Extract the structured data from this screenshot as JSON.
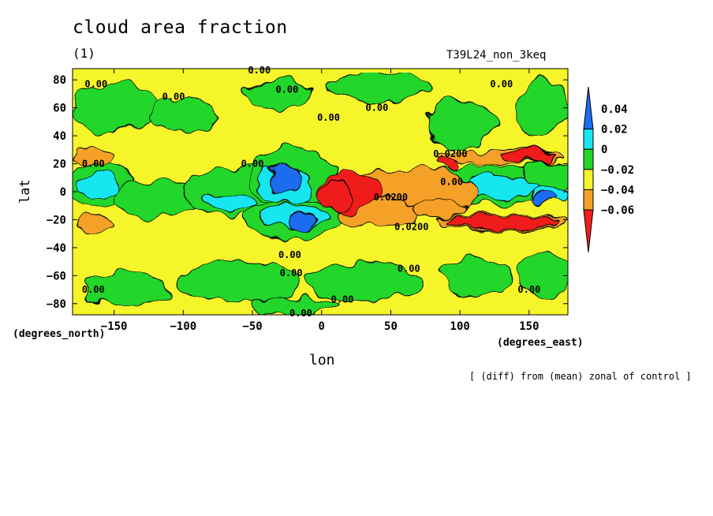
{
  "chart_data": {
    "type": "heatmap",
    "title": "cloud area fraction",
    "subtitle": "(1)",
    "run_label": "T39L24_non_3keq",
    "xlabel": "lon",
    "ylabel": "lat",
    "x_units": "(degrees_east)",
    "y_units": "(degrees_north)",
    "caption": "[ (diff) from (mean) zonal of control ]",
    "xlim": [
      -180,
      178
    ],
    "ylim": [
      -88,
      88
    ],
    "x_ticks": [
      -150,
      -100,
      -50,
      0,
      50,
      100,
      150
    ],
    "y_ticks": [
      -80,
      -60,
      -40,
      -20,
      0,
      20,
      40,
      60,
      80
    ],
    "colorbar": {
      "levels": [
        -0.06,
        -0.04,
        -0.02,
        0,
        0.02,
        0.04
      ],
      "labels": [
        "−0.06",
        "−0.04",
        "−0.02",
        "0",
        "0.02",
        "0.04"
      ],
      "colors": [
        "#1e6cf0",
        "#19e6f0",
        "#22d62a",
        "#f5f52a",
        "#f5a028",
        "#f01e1e"
      ],
      "extends": "both"
    },
    "contour_labels": [
      {
        "text": "0.00",
        "lon": -163,
        "lat": 77
      },
      {
        "text": "0.00",
        "lon": -107,
        "lat": 68
      },
      {
        "text": "0.00",
        "lon": -45,
        "lat": 87
      },
      {
        "text": "0.00",
        "lon": -25,
        "lat": 73
      },
      {
        "text": "0.00",
        "lon": 5,
        "lat": 53
      },
      {
        "text": "0.00",
        "lon": 40,
        "lat": 60
      },
      {
        "text": "0.00",
        "lon": 130,
        "lat": 77
      },
      {
        "text": "0.00",
        "lon": -165,
        "lat": 20
      },
      {
        "text": "0.00",
        "lon": -50,
        "lat": 20
      },
      {
        "text": "0.0200",
        "lon": 93,
        "lat": 27
      },
      {
        "text": "0.00",
        "lon": 94,
        "lat": 7
      },
      {
        "text": "0.0200",
        "lon": 50,
        "lat": -4
      },
      {
        "text": "0.0200",
        "lon": 65,
        "lat": -25
      },
      {
        "text": "0.00",
        "lon": -23,
        "lat": -45
      },
      {
        "text": "0.00",
        "lon": -22,
        "lat": -58
      },
      {
        "text": "0.00",
        "lon": 63,
        "lat": -55
      },
      {
        "text": "0.00",
        "lon": 15,
        "lat": -77
      },
      {
        "text": "0.00",
        "lon": -165,
        "lat": -70
      },
      {
        "text": "0.00",
        "lon": 150,
        "lat": -70
      },
      {
        "text": "0.00",
        "lon": -15,
        "lat": -87
      }
    ]
  }
}
